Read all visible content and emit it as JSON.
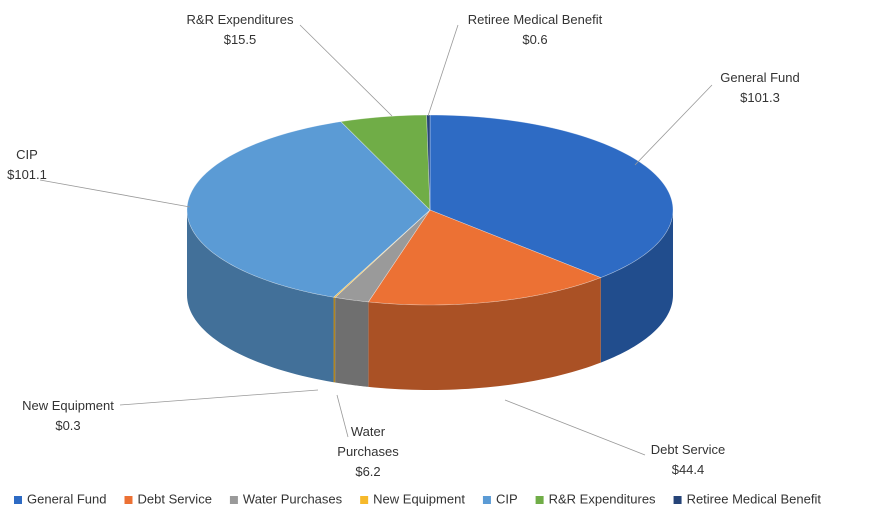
{
  "chart_data": {
    "type": "pie3d",
    "categories": [
      "General Fund",
      "Debt Service",
      "Water Purchases",
      "New Equipment",
      "CIP",
      "R&R Expenditures",
      "Retiree Medical Benefit"
    ],
    "values": [
      101.3,
      44.4,
      6.2,
      0.3,
      101.1,
      15.5,
      0.6
    ],
    "value_labels": [
      "$101.3",
      "$44.4",
      "$6.2",
      "$0.3",
      "$101.1",
      "$15.5",
      "$0.6"
    ],
    "colors": [
      "#2e6bc4",
      "#ec7134",
      "#9a9a9a",
      "#f6b92b",
      "#5b9bd5",
      "#70ad47",
      "#264478"
    ],
    "legend": "bottom"
  }
}
